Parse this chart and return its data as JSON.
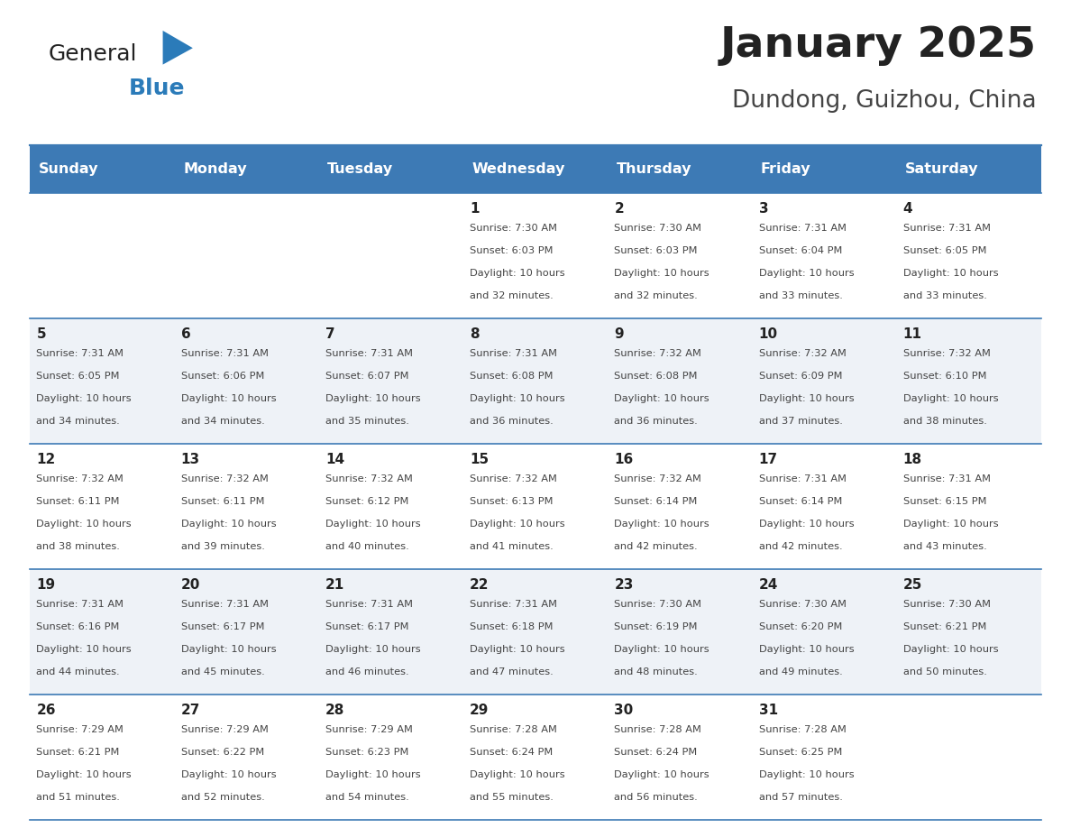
{
  "title": "January 2025",
  "subtitle": "Dundong, Guizhou, China",
  "header_bg_color": "#3d7ab5",
  "header_text_color": "#FFFFFF",
  "day_headers": [
    "Sunday",
    "Monday",
    "Tuesday",
    "Wednesday",
    "Thursday",
    "Friday",
    "Saturday"
  ],
  "bg_color": "#FFFFFF",
  "cell_bg_even": "#eef2f7",
  "cell_bg_odd": "#FFFFFF",
  "border_color": "#3d7ab5",
  "text_color": "#444444",
  "day_num_color": "#222222",
  "logo_general_color": "#222222",
  "logo_blue_color": "#2B7BB9",
  "logo_triangle_color": "#2B7BB9",
  "title_color": "#222222",
  "subtitle_color": "#444444",
  "calendar": [
    [
      {
        "day": "",
        "sunrise": "",
        "sunset": "",
        "daylight": ""
      },
      {
        "day": "",
        "sunrise": "",
        "sunset": "",
        "daylight": ""
      },
      {
        "day": "",
        "sunrise": "",
        "sunset": "",
        "daylight": ""
      },
      {
        "day": "1",
        "sunrise": "7:30 AM",
        "sunset": "6:03 PM",
        "daylight": "10 hours and 32 minutes."
      },
      {
        "day": "2",
        "sunrise": "7:30 AM",
        "sunset": "6:03 PM",
        "daylight": "10 hours and 32 minutes."
      },
      {
        "day": "3",
        "sunrise": "7:31 AM",
        "sunset": "6:04 PM",
        "daylight": "10 hours and 33 minutes."
      },
      {
        "day": "4",
        "sunrise": "7:31 AM",
        "sunset": "6:05 PM",
        "daylight": "10 hours and 33 minutes."
      }
    ],
    [
      {
        "day": "5",
        "sunrise": "7:31 AM",
        "sunset": "6:05 PM",
        "daylight": "10 hours and 34 minutes."
      },
      {
        "day": "6",
        "sunrise": "7:31 AM",
        "sunset": "6:06 PM",
        "daylight": "10 hours and 34 minutes."
      },
      {
        "day": "7",
        "sunrise": "7:31 AM",
        "sunset": "6:07 PM",
        "daylight": "10 hours and 35 minutes."
      },
      {
        "day": "8",
        "sunrise": "7:31 AM",
        "sunset": "6:08 PM",
        "daylight": "10 hours and 36 minutes."
      },
      {
        "day": "9",
        "sunrise": "7:32 AM",
        "sunset": "6:08 PM",
        "daylight": "10 hours and 36 minutes."
      },
      {
        "day": "10",
        "sunrise": "7:32 AM",
        "sunset": "6:09 PM",
        "daylight": "10 hours and 37 minutes."
      },
      {
        "day": "11",
        "sunrise": "7:32 AM",
        "sunset": "6:10 PM",
        "daylight": "10 hours and 38 minutes."
      }
    ],
    [
      {
        "day": "12",
        "sunrise": "7:32 AM",
        "sunset": "6:11 PM",
        "daylight": "10 hours and 38 minutes."
      },
      {
        "day": "13",
        "sunrise": "7:32 AM",
        "sunset": "6:11 PM",
        "daylight": "10 hours and 39 minutes."
      },
      {
        "day": "14",
        "sunrise": "7:32 AM",
        "sunset": "6:12 PM",
        "daylight": "10 hours and 40 minutes."
      },
      {
        "day": "15",
        "sunrise": "7:32 AM",
        "sunset": "6:13 PM",
        "daylight": "10 hours and 41 minutes."
      },
      {
        "day": "16",
        "sunrise": "7:32 AM",
        "sunset": "6:14 PM",
        "daylight": "10 hours and 42 minutes."
      },
      {
        "day": "17",
        "sunrise": "7:31 AM",
        "sunset": "6:14 PM",
        "daylight": "10 hours and 42 minutes."
      },
      {
        "day": "18",
        "sunrise": "7:31 AM",
        "sunset": "6:15 PM",
        "daylight": "10 hours and 43 minutes."
      }
    ],
    [
      {
        "day": "19",
        "sunrise": "7:31 AM",
        "sunset": "6:16 PM",
        "daylight": "10 hours and 44 minutes."
      },
      {
        "day": "20",
        "sunrise": "7:31 AM",
        "sunset": "6:17 PM",
        "daylight": "10 hours and 45 minutes."
      },
      {
        "day": "21",
        "sunrise": "7:31 AM",
        "sunset": "6:17 PM",
        "daylight": "10 hours and 46 minutes."
      },
      {
        "day": "22",
        "sunrise": "7:31 AM",
        "sunset": "6:18 PM",
        "daylight": "10 hours and 47 minutes."
      },
      {
        "day": "23",
        "sunrise": "7:30 AM",
        "sunset": "6:19 PM",
        "daylight": "10 hours and 48 minutes."
      },
      {
        "day": "24",
        "sunrise": "7:30 AM",
        "sunset": "6:20 PM",
        "daylight": "10 hours and 49 minutes."
      },
      {
        "day": "25",
        "sunrise": "7:30 AM",
        "sunset": "6:21 PM",
        "daylight": "10 hours and 50 minutes."
      }
    ],
    [
      {
        "day": "26",
        "sunrise": "7:29 AM",
        "sunset": "6:21 PM",
        "daylight": "10 hours and 51 minutes."
      },
      {
        "day": "27",
        "sunrise": "7:29 AM",
        "sunset": "6:22 PM",
        "daylight": "10 hours and 52 minutes."
      },
      {
        "day": "28",
        "sunrise": "7:29 AM",
        "sunset": "6:23 PM",
        "daylight": "10 hours and 54 minutes."
      },
      {
        "day": "29",
        "sunrise": "7:28 AM",
        "sunset": "6:24 PM",
        "daylight": "10 hours and 55 minutes."
      },
      {
        "day": "30",
        "sunrise": "7:28 AM",
        "sunset": "6:24 PM",
        "daylight": "10 hours and 56 minutes."
      },
      {
        "day": "31",
        "sunrise": "7:28 AM",
        "sunset": "6:25 PM",
        "daylight": "10 hours and 57 minutes."
      },
      {
        "day": "",
        "sunrise": "",
        "sunset": "",
        "daylight": ""
      }
    ]
  ]
}
